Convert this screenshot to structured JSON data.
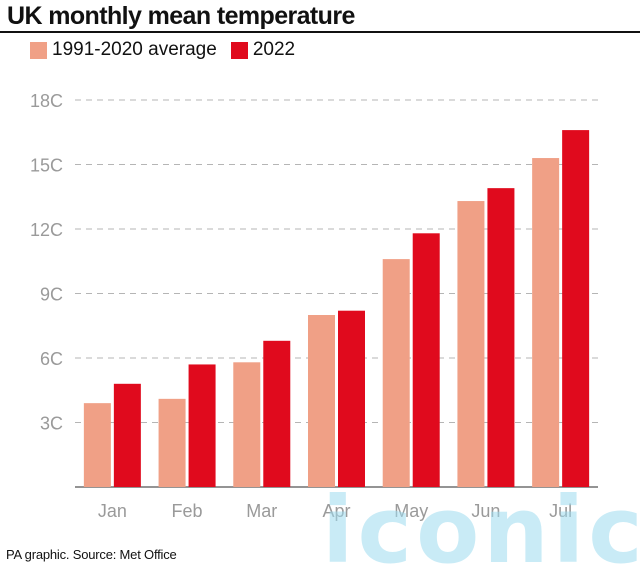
{
  "title": "UK monthly mean temperature",
  "source": "PA graphic. Source: Met Office",
  "watermark": "iconic",
  "colors": {
    "average": "#f0a086",
    "y2022": "#e00a1d",
    "axis": "#9a9a9a",
    "grid": "#b5b5b5",
    "watermark": "#9edcf0"
  },
  "chart_data": {
    "type": "bar",
    "title": "UK monthly mean temperature",
    "categories": [
      "Jan",
      "Feb",
      "Mar",
      "Apr",
      "May",
      "Jun",
      "Jul"
    ],
    "series": [
      {
        "name": "1991-2020 average",
        "values": [
          3.9,
          4.1,
          5.8,
          8.0,
          10.6,
          13.3,
          15.3
        ]
      },
      {
        "name": "2022",
        "values": [
          4.8,
          5.7,
          6.8,
          8.2,
          11.8,
          13.9,
          16.6
        ]
      }
    ],
    "ylim": [
      0,
      18
    ],
    "yticks": [
      3,
      6,
      9,
      12,
      15,
      18
    ],
    "ytick_labels": [
      "3C",
      "6C",
      "9C",
      "12C",
      "15C",
      "18C"
    ],
    "grid": true,
    "legend_position": "top-left"
  }
}
